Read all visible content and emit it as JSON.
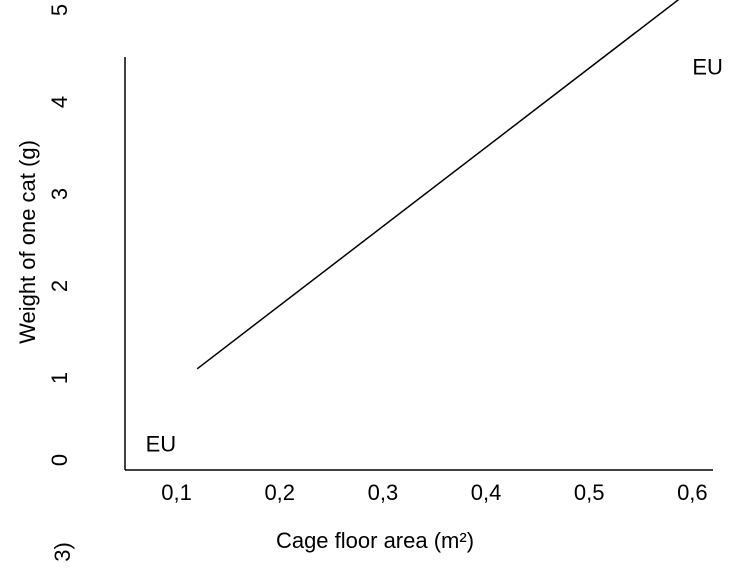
{
  "chart_data": {
    "type": "line",
    "title": "",
    "xlabel": "Cage floor area (m²)",
    "ylabel": "Weight of one cat (g)",
    "x_tick_labels": [
      "0,1",
      "0,2",
      "0,3",
      "0,4",
      "0,5",
      "0,6"
    ],
    "x_ticks": [
      0.1,
      0.2,
      0.3,
      0.4,
      0.5,
      0.6
    ],
    "y_tick_labels": [
      "0",
      "1",
      "2",
      "3",
      "4",
      "5"
    ],
    "y_ticks": [
      0,
      1,
      2,
      3,
      4,
      5
    ],
    "xlim": [
      0.05,
      0.62
    ],
    "ylim": [
      0,
      5
    ],
    "grid": false,
    "series": [
      {
        "x": [
          0.12,
          0.62
        ],
        "y": [
          1.1,
          5.4
        ]
      }
    ],
    "annotations": [
      {
        "text": "EU",
        "x": 0.07,
        "y": 0.2
      },
      {
        "text": "EU",
        "x": 0.6,
        "y": 4.3
      }
    ],
    "stray_text": "3)"
  }
}
